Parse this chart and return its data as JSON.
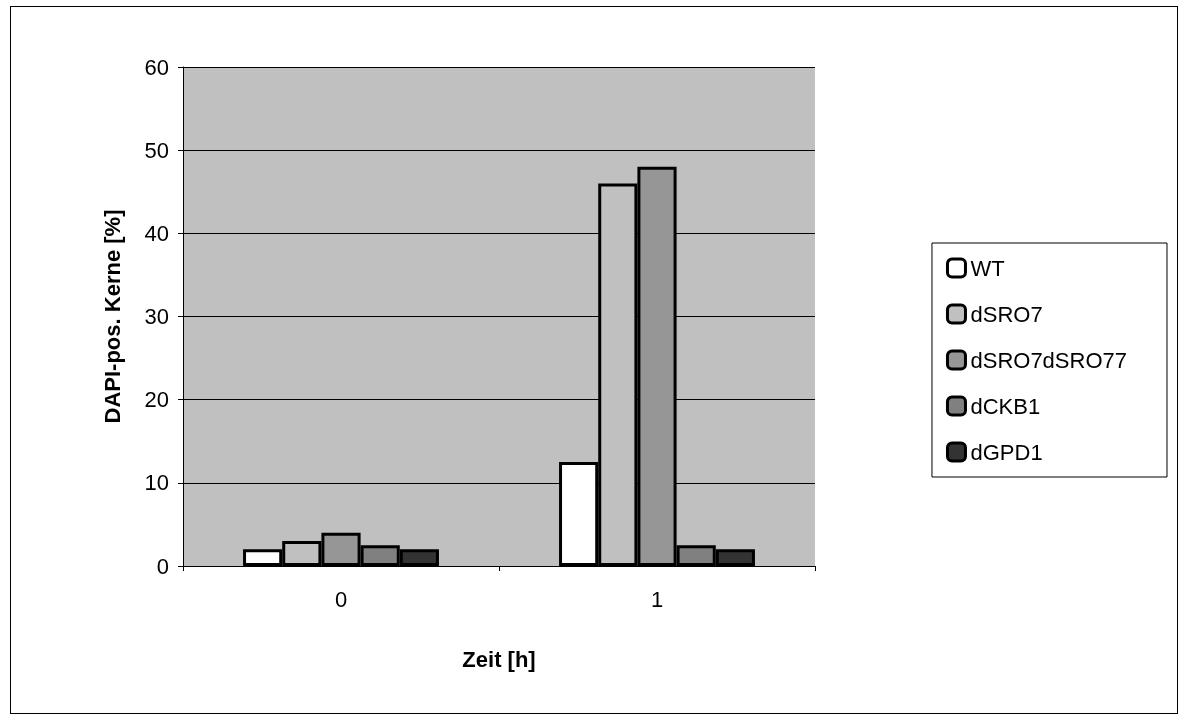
{
  "chart_data": {
    "type": "bar",
    "xlabel": "Zeit [h]",
    "ylabel": "DAPI-pos. Kerne [%]",
    "categories": [
      "0",
      "1"
    ],
    "series": [
      {
        "name": "WT",
        "color": "#ffffff",
        "values": [
          2,
          12.5
        ]
      },
      {
        "name": "dSRO7",
        "color": "#c0c0c0",
        "values": [
          3,
          46
        ]
      },
      {
        "name": "dSRO7dSRO77",
        "color": "#969696",
        "values": [
          4,
          48
        ]
      },
      {
        "name": "dCKB1",
        "color": "#808080",
        "values": [
          2.5,
          2.5
        ]
      },
      {
        "name": "dGPD1",
        "color": "#333333",
        "values": [
          2,
          2
        ]
      }
    ],
    "ylim": [
      0,
      60
    ],
    "yticks": [
      0,
      10,
      20,
      30,
      40,
      50,
      60
    ],
    "grid": "y",
    "legend": "right"
  }
}
